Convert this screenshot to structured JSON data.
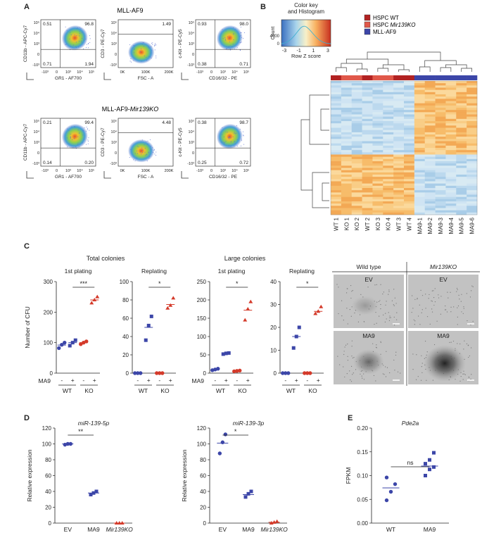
{
  "panels": {
    "A": "A",
    "B": "B",
    "C": "C",
    "D": "D",
    "E": "E"
  },
  "flow": {
    "rows": [
      {
        "title": "MLL-AF9",
        "title_italic": "",
        "plots": [
          {
            "ylabel": "CD11b - APC-Cy7",
            "xlabel": "GR1 - AF700",
            "quads": [
              "0.51",
              "96.8",
              "0.71",
              "1.94"
            ],
            "xticks": [
              "-10³",
              "0",
              "10³",
              "10⁴",
              "10⁵"
            ],
            "yticks": [
              "10⁵",
              "10⁴",
              "10³",
              "0",
              "-10³"
            ],
            "blob": "ur"
          },
          {
            "ylabel": "CD3 - PE-Cy7",
            "xlabel": "FSC - A",
            "quads": [
              "",
              "1.49",
              "",
              ""
            ],
            "xticks": [
              "0K",
              "100K",
              "200K"
            ],
            "yticks": [
              "10⁵",
              "10⁴",
              "10³",
              "0",
              "-10³"
            ],
            "blob": "mid"
          },
          {
            "ylabel": "c-Kit - PE-Cy5",
            "xlabel": "CD16/32 - PE",
            "quads": [
              "0.93",
              "98.0",
              "0.38",
              "0.71"
            ],
            "xticks": [
              "-10³",
              "0",
              "10³",
              "10⁴",
              "10⁵"
            ],
            "yticks": [
              "10⁵",
              "10⁴",
              "10³",
              "0",
              "-10³"
            ],
            "blob": "ur"
          }
        ]
      },
      {
        "title": "MLL-AF9-",
        "title_italic": "Mir139KO",
        "plots": [
          {
            "ylabel": "CD11b - APC-Cy7",
            "xlabel": "GR1 - AF700",
            "quads": [
              "0.21",
              "99.4",
              "0.14",
              "0.20"
            ],
            "xticks": [
              "-10³",
              "0",
              "10³",
              "10⁴",
              "10⁵"
            ],
            "yticks": [
              "10⁵",
              "10⁴",
              "10³",
              "0",
              "-10³"
            ],
            "blob": "ur"
          },
          {
            "ylabel": "CD3 - PE-Cy7",
            "xlabel": "FSC - A",
            "quads": [
              "",
              "4.48",
              "",
              ""
            ],
            "xticks": [
              "0K",
              "100K",
              "200K"
            ],
            "yticks": [
              "10⁵",
              "10⁴",
              "10³",
              "0",
              "-10³"
            ],
            "blob": "mid"
          },
          {
            "ylabel": "c-Kit - PE-Cy5",
            "xlabel": "CD16/32 - PE",
            "quads": [
              "0.38",
              "98.7",
              "0.25",
              "0.72"
            ],
            "xticks": [
              "-10³",
              "0",
              "10³",
              "10⁴",
              "10⁵"
            ],
            "yticks": [
              "10⁵",
              "10⁴",
              "10³",
              "0",
              "-10³"
            ],
            "blob": "ur"
          }
        ]
      }
    ]
  },
  "heatmap": {
    "colorkey_title": "Color key\nand Histogram",
    "colorkey_ylabel": "Count",
    "colorkey_ymax": "4000",
    "colorkey_ymin": "0",
    "colorkey_ticks": [
      "-3",
      "-1",
      "1",
      "3"
    ],
    "colorkey_xlabel": "Row Z score",
    "legend": [
      {
        "label": "HSPC WT",
        "italic": "",
        "color": "#b22222"
      },
      {
        "label": "HSPC ",
        "italic": "Mir139KO",
        "color": "#e0584a"
      },
      {
        "label": "MLL-AF9",
        "italic": "",
        "color": "#3c46a8"
      }
    ],
    "columns": [
      "WT 1",
      "KO 1",
      "KO 2",
      "WT 2",
      "KO 3",
      "KO 4",
      "WT 3",
      "WT 4",
      "MA9-1",
      "MA9-2",
      "MA9-3",
      "MA9-4",
      "MA9-5",
      "MA9-6"
    ],
    "column_groups": [
      "WT",
      "KO",
      "KO",
      "WT",
      "KO",
      "KO",
      "WT",
      "WT",
      "MA9",
      "MA9",
      "MA9",
      "MA9",
      "MA9",
      "MA9"
    ],
    "group_colors": {
      "WT": "#b22222",
      "KO": "#e0584a",
      "MA9": "#3c46a8"
    }
  },
  "colonies": {
    "group_titles": [
      "Total colonies",
      "Large colonies"
    ],
    "ylabel": "Number of CFU",
    "ma9_label": "MA9",
    "minus": "-",
    "plus": "+",
    "wt": "WT",
    "ko": "KO",
    "wt_color": "#3c46a8",
    "ko_color": "#d43a2a",
    "charts": [
      {
        "title": "1st plating",
        "yticks": [
          "0",
          "100",
          "200",
          "300"
        ],
        "ymax": 300,
        "sig": "***",
        "points": [
          [
            82,
            93,
            100
          ],
          [
            90,
            100,
            108
          ],
          [
            95,
            100,
            104
          ],
          [
            230,
            240,
            250
          ]
        ],
        "means": [
          92,
          100,
          100,
          240
        ]
      },
      {
        "title": "Replating",
        "yticks": [
          "0",
          "20",
          "40",
          "60",
          "80",
          "100"
        ],
        "ymax": 100,
        "sig": "*",
        "points": [
          [
            0,
            0,
            0
          ],
          [
            36,
            52,
            62
          ],
          [
            0,
            0,
            0
          ],
          [
            71,
            74,
            82
          ]
        ],
        "means": [
          0,
          50,
          0,
          75
        ]
      },
      {
        "title": "1st plating",
        "yticks": [
          "0",
          "50",
          "100",
          "150",
          "200",
          "250"
        ],
        "ymax": 250,
        "sig": "*",
        "points": [
          [
            8,
            10,
            12
          ],
          [
            52,
            54,
            55
          ],
          [
            5,
            6,
            7
          ],
          [
            145,
            175,
            195
          ]
        ],
        "means": [
          10,
          54,
          6,
          172
        ]
      },
      {
        "title": "Replating",
        "yticks": [
          "0",
          "10",
          "20",
          "30",
          "40"
        ],
        "ymax": 40,
        "sig": "*",
        "points": [
          [
            0,
            0,
            0
          ],
          [
            11,
            16,
            20
          ],
          [
            0,
            0,
            0
          ],
          [
            26,
            27,
            29
          ]
        ],
        "means": [
          0,
          16,
          0,
          27
        ]
      }
    ]
  },
  "micro": {
    "col_headers": [
      "Wild type",
      "Mir139KO"
    ],
    "labels": [
      "EV",
      "EV",
      "MA9",
      "MA9"
    ]
  },
  "expression": {
    "ylabel": "Relative expression",
    "charts": [
      {
        "title": "miR-139-5p",
        "yticks": [
          "0",
          "20",
          "40",
          "60",
          "80",
          "100",
          "120"
        ],
        "ymax": 120,
        "sig": "**",
        "categories": [
          "EV",
          "MA9",
          "Mir139KO"
        ],
        "colors": [
          "#3c46a8",
          "#3c46a8",
          "#d43a2a"
        ],
        "points": [
          [
            99,
            100,
            100
          ],
          [
            36,
            38,
            40
          ],
          [
            0,
            0,
            0
          ]
        ],
        "means": [
          100,
          38,
          0
        ]
      },
      {
        "title": "miR-139-3p",
        "yticks": [
          "0",
          "20",
          "40",
          "60",
          "80",
          "100",
          "120"
        ],
        "ymax": 120,
        "sig": "*",
        "categories": [
          "EV",
          "MA9",
          "Mir139KO"
        ],
        "colors": [
          "#3c46a8",
          "#3c46a8",
          "#d43a2a"
        ],
        "points": [
          [
            88,
            102,
            112
          ],
          [
            33,
            37,
            40
          ],
          [
            0,
            1,
            2
          ]
        ],
        "means": [
          101,
          36,
          1
        ]
      }
    ]
  },
  "pde2a": {
    "title": "Pde2a",
    "ylabel": "FPKM",
    "yticks": [
      "0.00",
      "0.05",
      "0.10",
      "0.15",
      "0.20"
    ],
    "ymax": 0.2,
    "sig": "ns",
    "categories": [
      "WT",
      "MA9"
    ],
    "points": [
      [
        0.048,
        0.066,
        0.082,
        0.096
      ],
      [
        0.1,
        0.113,
        0.118,
        0.125,
        0.133,
        0.148
      ]
    ],
    "means": [
      0.074,
      0.12
    ]
  }
}
